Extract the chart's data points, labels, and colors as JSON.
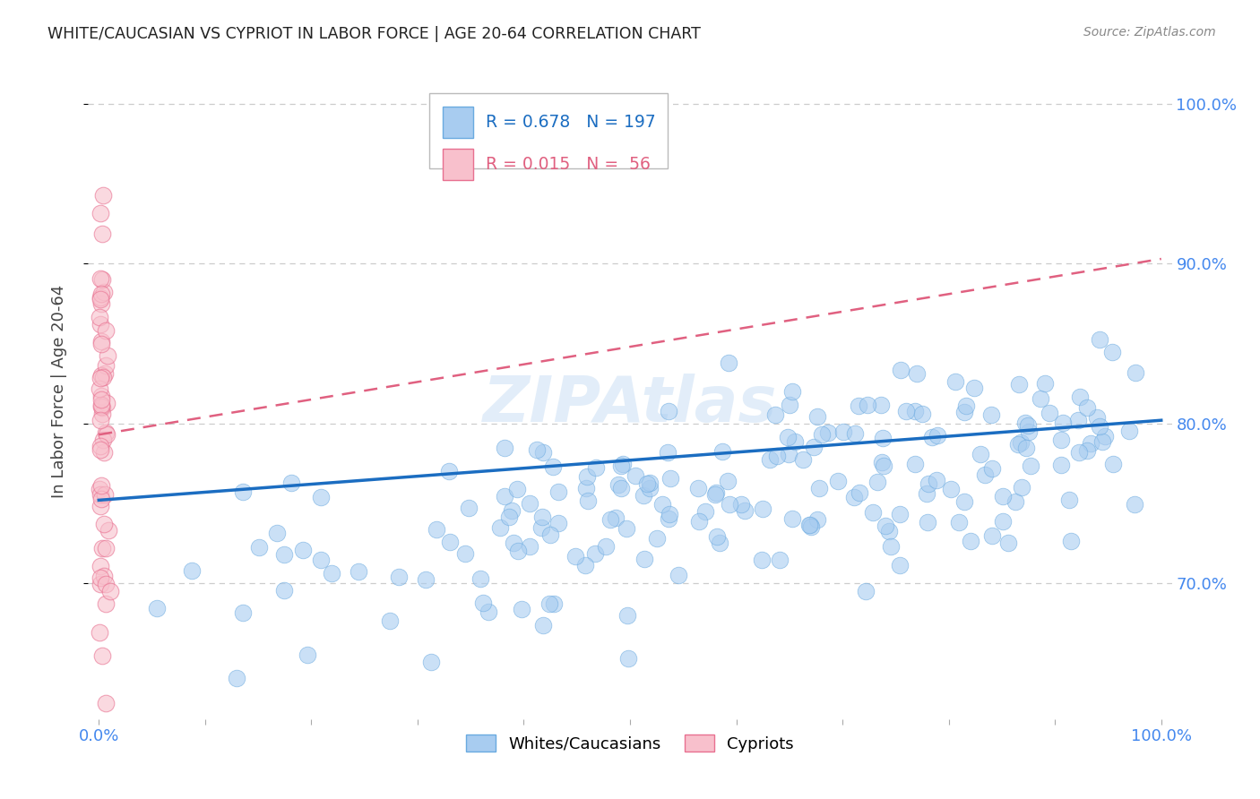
{
  "title": "WHITE/CAUCASIAN VS CYPRIOT IN LABOR FORCE | AGE 20-64 CORRELATION CHART",
  "source": "Source: ZipAtlas.com",
  "ylabel": "In Labor Force | Age 20-64",
  "watermark": "ZIPAtlas",
  "legend_blue_R": "0.678",
  "legend_blue_N": "197",
  "legend_pink_R": "0.015",
  "legend_pink_N": " 56",
  "y_ticks": [
    0.7,
    0.8,
    0.9,
    1.0
  ],
  "y_tick_labels": [
    "70.0%",
    "80.0%",
    "90.0%",
    "100.0%"
  ],
  "xlim": [
    -0.01,
    1.01
  ],
  "ylim": [
    0.615,
    1.025
  ],
  "blue_color": "#A8CCF0",
  "blue_edge_color": "#6AAAE0",
  "blue_line_color": "#1B6DC1",
  "pink_color": "#F8C0CC",
  "pink_edge_color": "#E87090",
  "pink_line_color": "#E06080",
  "background_color": "#FFFFFF",
  "grid_color": "#CCCCCC",
  "axis_label_color": "#4488EE",
  "title_color": "#222222",
  "source_color": "#888888",
  "ylabel_color": "#444444",
  "blue_line_x0": 0.0,
  "blue_line_y0": 0.752,
  "blue_line_x1": 1.0,
  "blue_line_y1": 0.802,
  "pink_line_x0": 0.0,
  "pink_line_y0": 0.793,
  "pink_line_x1": 1.0,
  "pink_line_y1": 0.903
}
